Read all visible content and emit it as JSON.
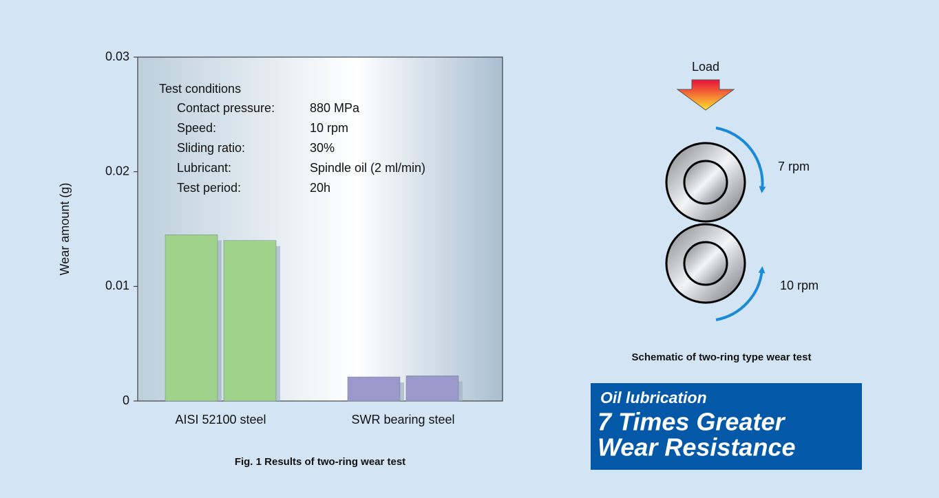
{
  "chart_data": {
    "type": "bar",
    "y_label": "Wear amount (g)",
    "categories": [
      "AISI 52100 steel",
      "SWR bearing steel"
    ],
    "values": [
      [
        0.0145,
        0.014
      ],
      [
        0.0021,
        0.0022
      ]
    ],
    "colors": [
      "#9fd28a",
      "#9b98cc"
    ],
    "ylim": [
      0,
      0.03
    ],
    "yticks": [
      0,
      0.01,
      0.02,
      0.03
    ],
    "grid": false,
    "annotation": {
      "title": "Test conditions",
      "rows": [
        [
          "Contact pressure:",
          "880 MPa"
        ],
        [
          "Speed:",
          "10 rpm"
        ],
        [
          "Sliding ratio:",
          "30%"
        ],
        [
          "Lubricant:",
          "Spindle oil (2 ml/min)"
        ],
        [
          "Test period:",
          "20h"
        ]
      ]
    },
    "caption": "Fig. 1  Results of two-ring wear test"
  },
  "schematic": {
    "load_label": "Load",
    "top_speed": "7 rpm",
    "bottom_speed": "10 rpm",
    "caption": "Schematic of two-ring type wear test"
  },
  "callout": {
    "line1": "Oil lubrication",
    "line2": "7 Times Greater",
    "line3": "Wear Resistance"
  }
}
